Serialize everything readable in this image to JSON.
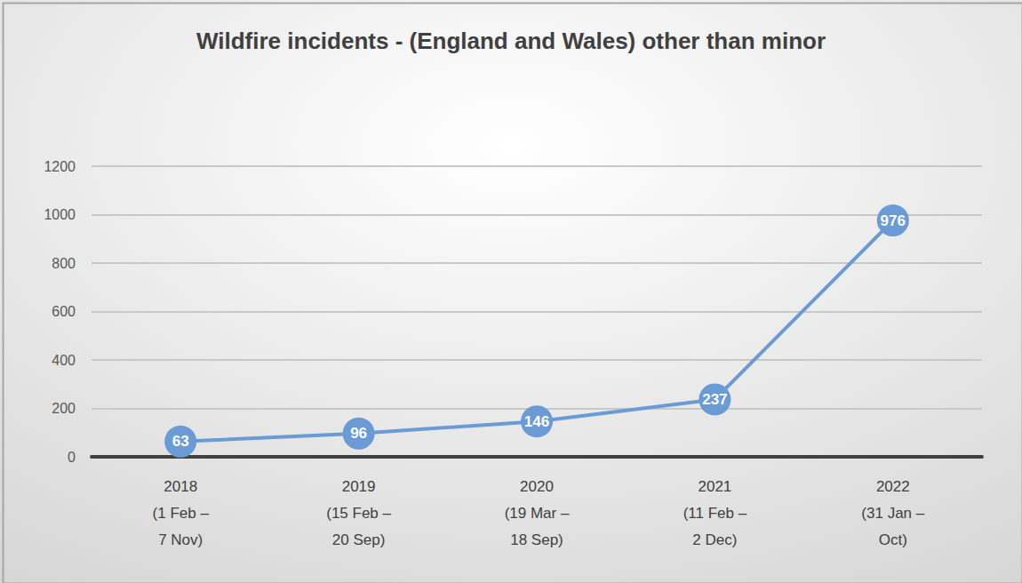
{
  "chart_data": {
    "type": "line",
    "title": "Wildfire incidents - (England and Wales) other than minor",
    "categories": [
      "2018\n(1 Feb –\n7 Nov)",
      "2019\n(15 Feb –\n20 Sep)",
      "2020\n(19 Mar –\n18 Sep)",
      "2021\n(11 Feb –\n2 Dec)",
      "2022\n(31 Jan –\nOct)"
    ],
    "values": [
      63,
      96,
      146,
      237,
      976
    ],
    "color": "#6a9bd4",
    "ylim": [
      0,
      1200
    ],
    "yticks": [
      0,
      200,
      400,
      600,
      800,
      1000,
      1200
    ],
    "grid": true,
    "data_labels": true,
    "marker": "circle",
    "line_style": "solid"
  }
}
